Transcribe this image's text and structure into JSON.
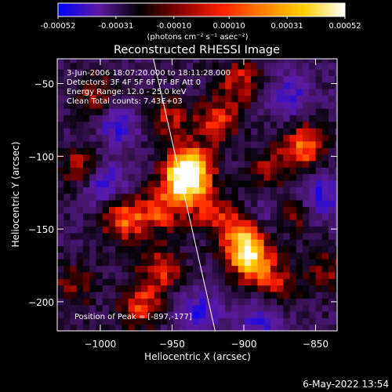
{
  "colorbar": {
    "tick_labels": [
      "-0.00052",
      "-0.00031",
      "-0.00010",
      "0.00010",
      "0.00031",
      "0.00052"
    ],
    "unit_label": "(photons cm⁻² s⁻¹ asec⁻²)",
    "colors": [
      "#0000ff",
      "#5a1aa0",
      "#000000",
      "#8b0000",
      "#ff2000",
      "#ff8000",
      "#ffd000",
      "#ffffff"
    ]
  },
  "annotations": {
    "line1": "3-Jun-2006 18:07:20.000 to 18:11:28.000",
    "line2": "Detectors: 3F 4F 5F 6F 7F 8F  Att 0",
    "line3": "Energy Range: 12.0 - 25.0 keV",
    "line4": "Clean     Total counts: 7.43E+03",
    "peak": "Position of Peak = [-897,-177]"
  },
  "footer": {
    "date": "6-May-2022 13:54"
  },
  "chart_data": {
    "type": "heatmap",
    "title": "Reconstructed RHESSI Image",
    "xlabel": "Heliocentric X (arcsec)",
    "ylabel": "Heliocentric Y (arcsec)",
    "xlim": [
      -1030,
      -835
    ],
    "ylim": [
      -220,
      -33
    ],
    "xticks": [
      -1000,
      -950,
      -900,
      -850
    ],
    "yticks": [
      -50,
      -100,
      -150,
      -200
    ],
    "value_range": [
      -0.00052,
      0.00052
    ],
    "limb_line": [
      [
        -963,
        -33
      ],
      [
        -920,
        -220
      ]
    ],
    "sources": [
      {
        "x": -943,
        "y": -120,
        "v": 0.00052
      },
      {
        "x": -940,
        "y": -108,
        "v": 0.00045
      },
      {
        "x": -898,
        "y": -172,
        "v": 0.00052
      },
      {
        "x": -905,
        "y": -155,
        "v": 0.00035
      },
      {
        "x": -860,
        "y": -95,
        "v": 0.0004
      },
      {
        "x": -870,
        "y": -140,
        "v": 0.00038
      },
      {
        "x": -986,
        "y": -145,
        "v": 0.0004
      },
      {
        "x": -960,
        "y": -180,
        "v": 0.0003
      },
      {
        "x": -975,
        "y": -205,
        "v": 0.00032
      },
      {
        "x": -905,
        "y": -50,
        "v": 0.00028
      },
      {
        "x": -920,
        "y": -78,
        "v": 0.0003
      },
      {
        "x": -1005,
        "y": -60,
        "v": 0.00025
      },
      {
        "x": -1015,
        "y": -110,
        "v": 0.0003
      },
      {
        "x": -955,
        "y": -75,
        "v": 0.00025
      },
      {
        "x": -885,
        "y": -110,
        "v": 0.00022
      },
      {
        "x": -960,
        "y": -140,
        "v": 0.0003
      },
      {
        "x": -925,
        "y": -140,
        "v": 0.00025
      },
      {
        "x": -880,
        "y": -190,
        "v": 0.00025
      },
      {
        "x": -845,
        "y": -180,
        "v": 0.0002
      },
      {
        "x": -1020,
        "y": -190,
        "v": 0.00022
      }
    ],
    "negative_sources": [
      {
        "x": -1000,
        "y": -120,
        "v": -0.00035
      },
      {
        "x": -880,
        "y": -140,
        "v": -0.0003
      },
      {
        "x": -990,
        "y": -80,
        "v": -0.00028
      },
      {
        "x": -850,
        "y": -130,
        "v": -0.00032
      },
      {
        "x": -935,
        "y": -210,
        "v": -0.0003
      },
      {
        "x": -890,
        "y": -215,
        "v": -0.00025
      },
      {
        "x": -870,
        "y": -60,
        "v": -0.00025
      }
    ]
  }
}
